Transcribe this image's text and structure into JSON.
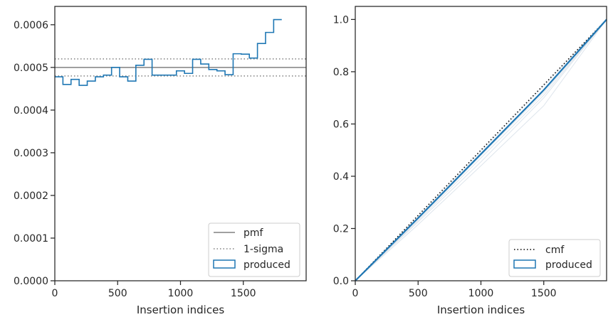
{
  "chart_data": [
    {
      "type": "histogram",
      "xlabel": "Insertion indices",
      "ylabel": "",
      "xlim": [
        0,
        2000
      ],
      "ylim": [
        0,
        0.000643
      ],
      "xticks": [
        "0",
        "500",
        "1000",
        "1500"
      ],
      "xtick_values": [
        0,
        500,
        1000,
        1500
      ],
      "yticks": [
        "0.0000",
        "0.0001",
        "0.0002",
        "0.0003",
        "0.0004",
        "0.0005",
        "0.0006"
      ],
      "ytick_values": [
        0,
        0.0001,
        0.0002,
        0.0003,
        0.0004,
        0.0005,
        0.0006
      ],
      "reference_lines": {
        "pmf": 0.0005,
        "sigma_upper": 0.00052,
        "sigma_lower": 0.00048
      },
      "series": [
        {
          "name": "produced",
          "bin_width": 64.5,
          "values": [
            0.000478,
            0.00046,
            0.000472,
            0.000458,
            0.000468,
            0.000478,
            0.000482,
            0.0005,
            0.000478,
            0.000468,
            0.000505,
            0.000519,
            0.000482,
            0.000482,
            0.000482,
            0.000492,
            0.000486,
            0.000519,
            0.000508,
            0.000495,
            0.000492,
            0.000483,
            0.000532,
            0.000531,
            0.000522,
            0.000556,
            0.000582,
            0.000612
          ]
        }
      ],
      "legend": {
        "position": "lower-right",
        "entries": [
          "pmf",
          "1-sigma",
          "produced"
        ]
      },
      "colors": {
        "produced": "#1f77b4",
        "pmf": "#808080",
        "sigma": "#808080"
      }
    },
    {
      "type": "line",
      "xlabel": "Insertion indices",
      "ylabel": "",
      "xlim": [
        0,
        2000
      ],
      "ylim": [
        0,
        1.05
      ],
      "xticks": [
        "0",
        "500",
        "1000",
        "1500"
      ],
      "xtick_values": [
        0,
        500,
        1000,
        1500
      ],
      "yticks": [
        "0.0",
        "0.2",
        "0.4",
        "0.6",
        "0.8",
        "1.0"
      ],
      "ytick_values": [
        0,
        0.2,
        0.4,
        0.6,
        0.8,
        1.0
      ],
      "series": [
        {
          "name": "cmf",
          "style": "dotted",
          "x": [
            0,
            2000
          ],
          "y": [
            0,
            1.0
          ]
        },
        {
          "name": "produced",
          "style": "solid",
          "x": [
            0,
            500,
            1000,
            1500,
            2000
          ],
          "y": [
            0,
            0.24,
            0.485,
            0.73,
            1.0
          ]
        }
      ],
      "faint_series": [
        {
          "x": [
            0,
            500,
            1000,
            1500,
            2000
          ],
          "y": [
            0,
            0.23,
            0.47,
            0.71,
            1.0
          ]
        },
        {
          "x": [
            0,
            500,
            1000,
            1500,
            2000
          ],
          "y": [
            0,
            0.225,
            0.455,
            0.7,
            1.0
          ]
        },
        {
          "x": [
            0,
            500,
            1000,
            1500,
            2000
          ],
          "y": [
            0,
            0.245,
            0.495,
            0.745,
            1.0
          ]
        },
        {
          "x": [
            0,
            500,
            1000,
            1500,
            2000
          ],
          "y": [
            0,
            0.215,
            0.44,
            0.67,
            1.0
          ]
        },
        {
          "x": [
            0,
            500,
            1000,
            1500,
            2000
          ],
          "y": [
            0,
            0.235,
            0.48,
            0.72,
            1.0
          ]
        }
      ],
      "legend": {
        "position": "lower-right",
        "entries": [
          "cmf",
          "produced"
        ]
      },
      "colors": {
        "produced": "#1f77b4",
        "cmf": "#000000",
        "faint": "#c8d3df"
      }
    }
  ]
}
